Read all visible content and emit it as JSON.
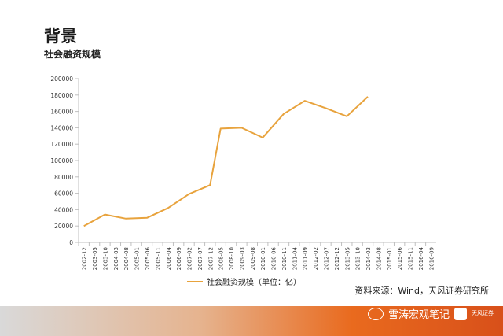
{
  "page": {
    "title": "背景",
    "subtitle": "社会融资规模"
  },
  "legend": {
    "label": "社会融资规模（单位：亿）"
  },
  "source": "资料来源：Wind，天风证券研究所",
  "watermark": {
    "account": "雪涛宏观笔记",
    "logo_text": "天风证券",
    "logo_icon": "tianfeng-logo-icon",
    "wechat_icon": "wechat-icon"
  },
  "colors": {
    "line": "#E8A33D",
    "axis": "#bfbfbf",
    "text": "#222222"
  },
  "chart_data": {
    "type": "line",
    "title": "",
    "xlabel": "",
    "ylabel": "",
    "ylim": [
      0,
      200000
    ],
    "yticks": [
      0,
      20000,
      40000,
      60000,
      80000,
      100000,
      120000,
      140000,
      160000,
      180000,
      200000
    ],
    "grid": false,
    "legend_position": "bottom",
    "categories": [
      "2002-12",
      "2003-05",
      "2003-10",
      "2004-03",
      "2004-08",
      "2005-01",
      "2005-06",
      "2005-11",
      "2006-04",
      "2006-09",
      "2007-02",
      "2007-07",
      "2007-12",
      "2008-05",
      "2008-10",
      "2009-03",
      "2009-08",
      "2010-01",
      "2010-06",
      "2010-11",
      "2011-04",
      "2011-09",
      "2012-02",
      "2012-07",
      "2012-12",
      "2013-05",
      "2013-10",
      "2014-03",
      "2014-08",
      "2015-01",
      "2015-06",
      "2015-11",
      "2016-04",
      "2016-09"
    ],
    "series": [
      {
        "name": "社会融资规模（单位：亿）",
        "points": [
          {
            "x": "2002-12",
            "y": 20000
          },
          {
            "x": "2003-10",
            "y": 34000
          },
          {
            "x": "2004-08",
            "y": 29000
          },
          {
            "x": "2005-06",
            "y": 30000
          },
          {
            "x": "2006-04",
            "y": 42000
          },
          {
            "x": "2007-02",
            "y": 59000
          },
          {
            "x": "2007-12",
            "y": 70000
          },
          {
            "x": "2008-05",
            "y": 139000
          },
          {
            "x": "2009-03",
            "y": 140000
          },
          {
            "x": "2010-01",
            "y": 128000
          },
          {
            "x": "2010-11",
            "y": 157000
          },
          {
            "x": "2011-09",
            "y": 173000
          },
          {
            "x": "2012-07",
            "y": 164000
          },
          {
            "x": "2013-05",
            "y": 154000
          },
          {
            "x": "2014-03",
            "y": 178000
          }
        ]
      }
    ]
  }
}
